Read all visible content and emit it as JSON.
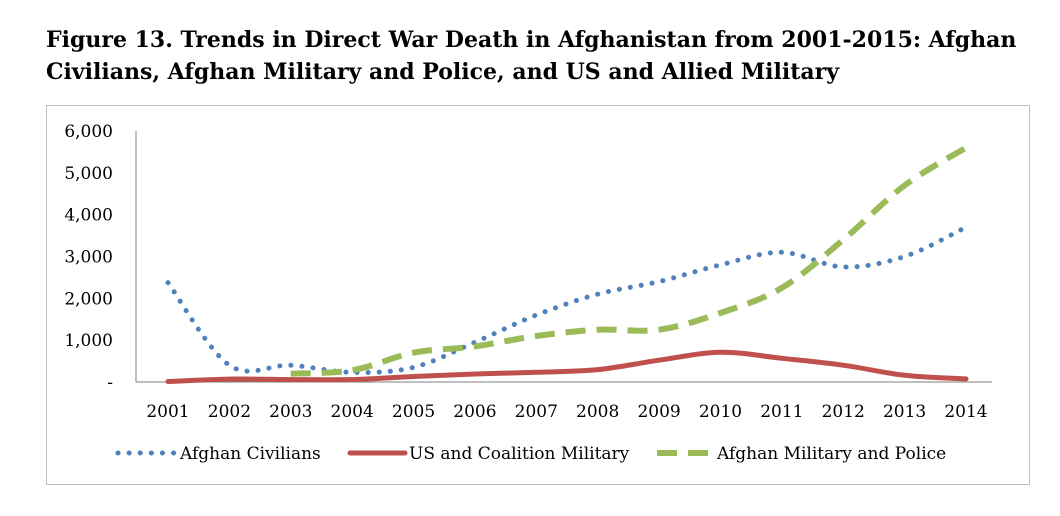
{
  "title": "Figure 13. Trends in Direct War Death in Afghanistan from 2001-2015: Afghan Civilians, Afghan Military and Police, and US and Allied Military",
  "chart_data": {
    "type": "line",
    "title": "Figure 13. Trends in Direct War Death in Afghanistan from 2001-2015: Afghan Civilians, Afghan Military and Police, and US and Allied Military",
    "xlabel": "",
    "ylabel": "",
    "categories": [
      "2001",
      "2002",
      "2003",
      "2004",
      "2005",
      "2006",
      "2007",
      "2008",
      "2009",
      "2010",
      "2011",
      "2012",
      "2013",
      "2014"
    ],
    "y_tick_labels": [
      "-",
      "1,000",
      "2,000",
      "3,000",
      "4,000",
      "5,000",
      "6,000"
    ],
    "ylim": [
      0,
      6000
    ],
    "grid": false,
    "legend_position": "bottom",
    "series": [
      {
        "name": "Afghan Civilians",
        "color": "#4f81bd",
        "style": "dotted",
        "values": [
          2375,
          400,
          400,
          230,
          350,
          950,
          1600,
          2100,
          2400,
          2800,
          3100,
          2750,
          3000,
          3700
        ]
      },
      {
        "name": "US and Coalition Military",
        "color": "#c0504d",
        "style": "solid",
        "values": [
          12,
          70,
          58,
          60,
          131,
          191,
          232,
          295,
          521,
          711,
          566,
          402,
          161,
          75
        ]
      },
      {
        "name": "Afghan Military and Police",
        "color": "#9bbb59",
        "style": "dashed",
        "values": [
          null,
          null,
          200,
          280,
          700,
          850,
          1100,
          1250,
          1250,
          1650,
          2250,
          3400,
          4700,
          5600
        ]
      }
    ]
  }
}
